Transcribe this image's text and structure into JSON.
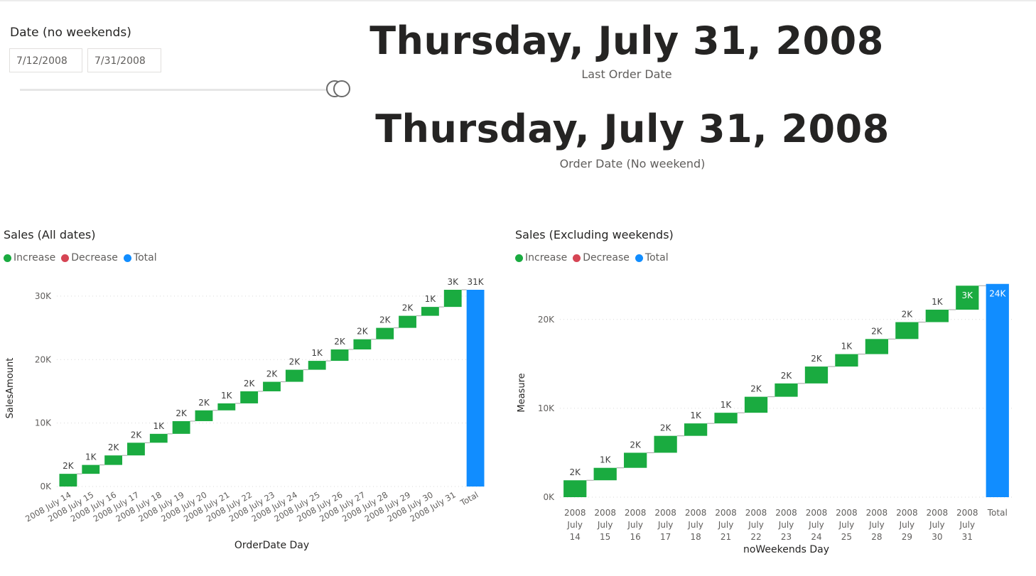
{
  "slicer": {
    "title": "Date (no weekends)",
    "start": "7/12/2008",
    "end": "7/31/2008"
  },
  "cards": [
    {
      "value": "Thursday, July 31, 2008",
      "label": "Last Order Date"
    },
    {
      "value": "Thursday, July 31, 2008",
      "label": "Order Date (No weekend)"
    }
  ],
  "colors": {
    "increase": "#1aab40",
    "decrease": "#d64554",
    "total": "#118dff"
  },
  "legend": {
    "increase": "Increase",
    "decrease": "Decrease",
    "total": "Total"
  },
  "chart_data": [
    {
      "type": "waterfall",
      "title": "Sales (All dates)",
      "xlabel": "OrderDate Day",
      "ylabel": "SalesAmount",
      "ylim": [
        0,
        31000
      ],
      "yticks": [
        "0K",
        "10K",
        "20K",
        "30K"
      ],
      "ytick_values": [
        0,
        10000,
        20000,
        30000
      ],
      "categories": [
        "2008 July 14",
        "2008 July 15",
        "2008 July 16",
        "2008 July 17",
        "2008 July 18",
        "2008 July 19",
        "2008 July 20",
        "2008 July 21",
        "2008 July 22",
        "2008 July 23",
        "2008 July 24",
        "2008 July 25",
        "2008 July 26",
        "2008 July 27",
        "2008 July 28",
        "2008 July 29",
        "2008 July 30",
        "2008 July 31"
      ],
      "values": [
        2000,
        1400,
        1500,
        2000,
        1400,
        2000,
        1700,
        1100,
        1900,
        1500,
        1900,
        1400,
        1800,
        1600,
        1800,
        1900,
        1400,
        2700
      ],
      "data_labels": [
        "2K",
        "1K",
        "2K",
        "2K",
        "1K",
        "2K",
        "2K",
        "1K",
        "2K",
        "2K",
        "2K",
        "1K",
        "2K",
        "2K",
        "2K",
        "2K",
        "1K",
        "3K"
      ],
      "total_label": "Total",
      "total_value": 31000,
      "total_data_label": "31K"
    },
    {
      "type": "waterfall",
      "title": "Sales (Excluding weekends)",
      "xlabel": "noWeekends Day",
      "ylabel": "Measure",
      "ylim": [
        0,
        23500
      ],
      "yticks": [
        "0K",
        "10K",
        "20K"
      ],
      "ytick_values": [
        0,
        10000,
        20000
      ],
      "categories": [
        "2008 July 14",
        "2008 July 15",
        "2008 July 16",
        "2008 July 17",
        "2008 July 18",
        "2008 July 21",
        "2008 July 22",
        "2008 July 23",
        "2008 July 24",
        "2008 July 25",
        "2008 July 28",
        "2008 July 29",
        "2008 July 30",
        "2008 July 31"
      ],
      "values": [
        1900,
        1400,
        1700,
        1900,
        1400,
        1200,
        1800,
        1500,
        1900,
        1400,
        1700,
        1900,
        1400,
        2700
      ],
      "data_labels": [
        "2K",
        "1K",
        "2K",
        "2K",
        "1K",
        "1K",
        "2K",
        "2K",
        "2K",
        "1K",
        "2K",
        "2K",
        "1K",
        "3K"
      ],
      "total_label": "Total",
      "total_value": 24000,
      "total_data_label": "24K"
    }
  ]
}
